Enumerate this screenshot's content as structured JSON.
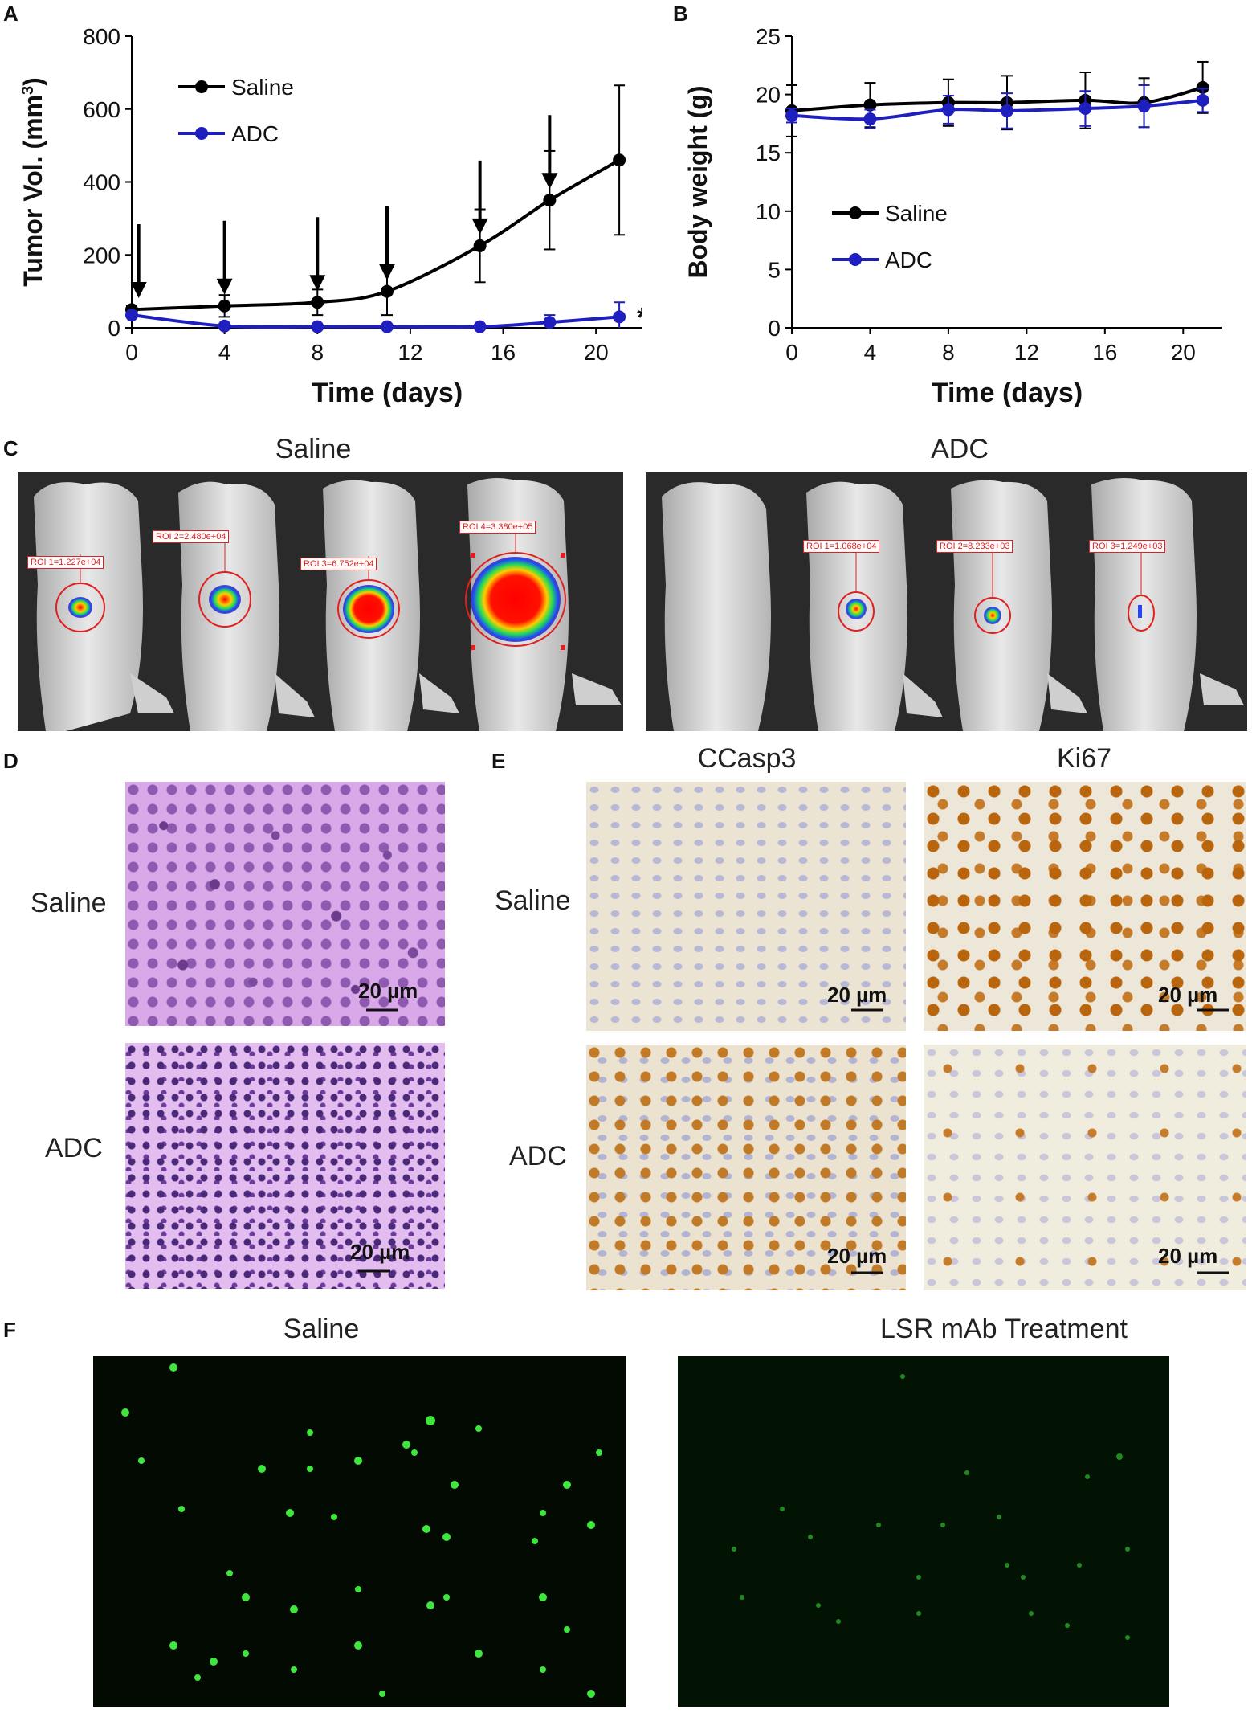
{
  "panels": {
    "A": "A",
    "B": "B",
    "C": "C",
    "D": "D",
    "E": "E",
    "F": "F"
  },
  "chart_data": [
    {
      "type": "line",
      "panel": "A",
      "xlabel": "Time (days)",
      "ylabel_main": "Tumor Vol. (mm",
      "ylabel_sup": "3",
      "ylabel_tail": ")",
      "xlim": [
        0,
        22
      ],
      "ylim": [
        0,
        800
      ],
      "xticks": [
        0,
        4,
        8,
        12,
        16,
        20
      ],
      "yticks": [
        0,
        200,
        400,
        600,
        800
      ],
      "legend_position": "top-left",
      "series": [
        {
          "name": "Saline",
          "color": "#000000",
          "x": [
            0,
            4,
            8,
            11,
            15,
            18,
            21
          ],
          "y": [
            50,
            60,
            70,
            100,
            225,
            350,
            460
          ],
          "err": [
            10,
            30,
            35,
            65,
            100,
            135,
            205
          ]
        },
        {
          "name": "ADC",
          "color": "#1f1fbf",
          "x": [
            0,
            4,
            8,
            11,
            15,
            18,
            21
          ],
          "y": [
            35,
            5,
            3,
            3,
            3,
            15,
            30
          ],
          "err": [
            5,
            3,
            2,
            2,
            5,
            20,
            40
          ]
        }
      ],
      "dose_arrows_days": [
        0.3,
        4,
        8,
        11,
        15,
        18
      ],
      "significance": "*"
    },
    {
      "type": "line",
      "panel": "B",
      "xlabel": "Time (days)",
      "ylabel": "Body weight (g)",
      "xlim": [
        0,
        22
      ],
      "ylim": [
        0,
        25
      ],
      "xticks": [
        0,
        4,
        8,
        12,
        16,
        20
      ],
      "yticks": [
        0,
        5,
        10,
        15,
        20,
        25
      ],
      "legend_position": "center-left",
      "series": [
        {
          "name": "Saline",
          "color": "#000000",
          "x": [
            0,
            4,
            8,
            11,
            15,
            18,
            21
          ],
          "y": [
            18.6,
            19.1,
            19.3,
            19.3,
            19.5,
            19.3,
            20.6
          ],
          "err": [
            2.2,
            1.9,
            2.0,
            2.3,
            2.4,
            2.1,
            2.2
          ]
        },
        {
          "name": "ADC",
          "color": "#1f1fbf",
          "x": [
            0,
            4,
            8,
            11,
            15,
            18,
            21
          ],
          "y": [
            18.2,
            17.9,
            18.7,
            18.6,
            18.8,
            19.0,
            19.5
          ],
          "err": [
            0.6,
            0.8,
            1.2,
            1.5,
            1.5,
            1.8,
            1.0
          ]
        }
      ]
    }
  ],
  "panel_c": {
    "saline_label": "Saline",
    "adc_label": "ADC",
    "saline_rois": [
      "ROI 1=1.227e+04",
      "ROI 2=2.480e+04",
      "ROI 3=6.752e+04",
      "ROI 4=3.380e+05"
    ],
    "adc_rois": [
      "ROI 1=1.068e+04",
      "ROI 2=8.233e+03",
      "ROI 3=1.249e+03"
    ]
  },
  "panel_d": {
    "row1": "Saline",
    "row2": "ADC",
    "scale": "20 µm"
  },
  "panel_e": {
    "col1": "CCasp3",
    "col2": "Ki67",
    "row1": "Saline",
    "row2": "ADC",
    "scale": "20 µm"
  },
  "panel_f": {
    "left_label": "Saline",
    "right_label": "LSR mAb Treatment"
  },
  "colors": {
    "saline": "#000000",
    "adc": "#1f1fbf",
    "he_stain": "#c98ed8",
    "ihc_bg": "#e9e2cf",
    "fluor_green": "#39e639"
  }
}
